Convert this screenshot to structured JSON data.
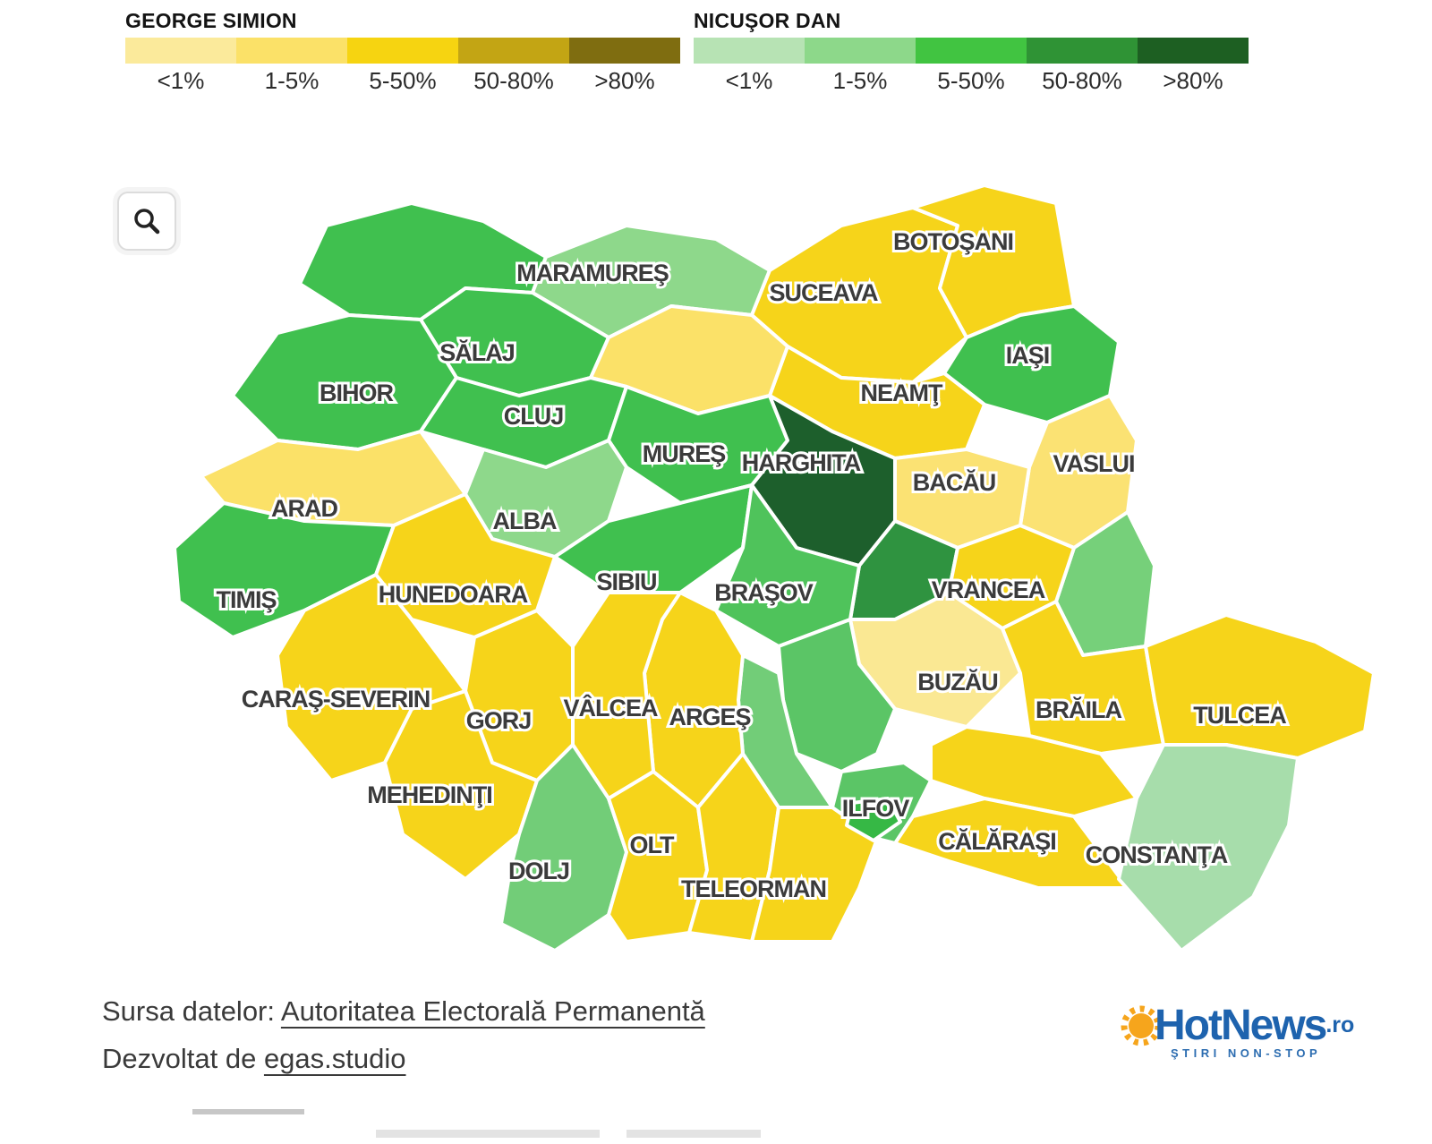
{
  "legends": [
    {
      "title": "GEORGE SIMION",
      "buckets": [
        {
          "label": "<1%",
          "color": "#FBEA9B"
        },
        {
          "label": "1-5%",
          "color": "#FBE168"
        },
        {
          "label": "5-50%",
          "color": "#F6D411"
        },
        {
          "label": "50-80%",
          "color": "#C3A514"
        },
        {
          "label": ">80%",
          "color": "#7F6D10"
        }
      ]
    },
    {
      "title": "NICUŞOR DAN",
      "buckets": [
        {
          "label": "<1%",
          "color": "#B7E3B4"
        },
        {
          "label": "1-5%",
          "color": "#8DD88A"
        },
        {
          "label": "5-50%",
          "color": "#41C441"
        },
        {
          "label": "50-80%",
          "color": "#2F9335"
        },
        {
          "label": ">80%",
          "color": "#1D5F22"
        }
      ]
    }
  ],
  "chart_data": {
    "type": "choropleth",
    "region": "Romania counties",
    "counties": [
      {
        "id": "satu-mare",
        "label": "",
        "color": "#40C04F",
        "leader": "dan",
        "share": "5-50%"
      },
      {
        "id": "maramures",
        "label": "MARAMUREŞ",
        "color": "#8ED88B",
        "leader": "dan",
        "share": "1-5%"
      },
      {
        "id": "suceava",
        "label": "SUCEAVA",
        "color": "#F6D41A",
        "leader": "simion",
        "share": "5-50%"
      },
      {
        "id": "botosani",
        "label": "BOTOŞANI",
        "color": "#F6D41A",
        "leader": "simion",
        "share": "5-50%"
      },
      {
        "id": "iasi",
        "label": "IAŞI",
        "color": "#40C04F",
        "leader": "dan",
        "share": "5-50%"
      },
      {
        "id": "neamt",
        "label": "NEAMŢ",
        "color": "#F6D41A",
        "leader": "simion",
        "share": "5-50%"
      },
      {
        "id": "vaslui",
        "label": "VASLUI",
        "color": "#FBE273",
        "leader": "simion",
        "share": "1-5%"
      },
      {
        "id": "bacau",
        "label": "BACĂU",
        "color": "#FBE273",
        "leader": "simion",
        "share": "1-5%"
      },
      {
        "id": "salaj",
        "label": "SĂLAJ",
        "color": "#40C04F",
        "leader": "dan",
        "share": "5-50%"
      },
      {
        "id": "bistrita-nasaud",
        "label": "",
        "color": "#FBE168",
        "leader": "simion",
        "share": "1-5%"
      },
      {
        "id": "bihor",
        "label": "BIHOR",
        "color": "#40C04F",
        "leader": "dan",
        "share": "5-50%"
      },
      {
        "id": "cluj",
        "label": "CLUJ",
        "color": "#40C04F",
        "leader": "dan",
        "share": "5-50%"
      },
      {
        "id": "mures",
        "label": "MUREŞ",
        "color": "#40C04F",
        "leader": "dan",
        "share": "5-50%"
      },
      {
        "id": "harghita",
        "label": "HARGHITA",
        "color": "#1D5F2C",
        "leader": "dan",
        "share": ">80%"
      },
      {
        "id": "galati",
        "label": "",
        "color": "#76D07A",
        "leader": "dan",
        "share": "1-5%"
      },
      {
        "id": "covasna",
        "label": "",
        "color": "#2F9340",
        "leader": "dan",
        "share": "50-80%"
      },
      {
        "id": "alba",
        "label": "ALBA",
        "color": "#8ED88B",
        "leader": "dan",
        "share": "1-5%"
      },
      {
        "id": "arad",
        "label": "ARAD",
        "color": "#FBE168",
        "leader": "simion",
        "share": "1-5%"
      },
      {
        "id": "timis",
        "label": "TIMIŞ",
        "color": "#40C04F",
        "leader": "dan",
        "share": "5-50%"
      },
      {
        "id": "hunedoara",
        "label": "HUNEDOARA",
        "color": "#F6D41A",
        "leader": "simion",
        "share": "5-50%"
      },
      {
        "id": "sibiu",
        "label": "SIBIU",
        "color": "#40C04F",
        "leader": "dan",
        "share": "5-50%"
      },
      {
        "id": "brasov",
        "label": "BRAŞOV",
        "color": "#4FC35B",
        "leader": "dan",
        "share": "5-50%"
      },
      {
        "id": "vrancea",
        "label": "VRANCEA",
        "color": "#F6D41A",
        "leader": "simion",
        "share": "5-50%"
      },
      {
        "id": "buzau",
        "label": "BUZĂU",
        "color": "#FAE893",
        "leader": "simion",
        "share": "<1%"
      },
      {
        "id": "braila",
        "label": "BRĂILA",
        "color": "#F6D41A",
        "leader": "simion",
        "share": "5-50%"
      },
      {
        "id": "tulcea",
        "label": "TULCEA",
        "color": "#F6D41A",
        "leader": "simion",
        "share": "5-50%"
      },
      {
        "id": "prahova",
        "label": "",
        "color": "#5BC566",
        "leader": "dan",
        "share": "5-50%"
      },
      {
        "id": "dambovita",
        "label": "",
        "color": "#72CD78",
        "leader": "dan",
        "share": "1-5%"
      },
      {
        "id": "arges",
        "label": "ARGEŞ",
        "color": "#F6D41A",
        "leader": "simion",
        "share": "5-50%"
      },
      {
        "id": "valcea",
        "label": "VÂLCEA",
        "color": "#F6D41A",
        "leader": "simion",
        "share": "5-50%"
      },
      {
        "id": "gorj",
        "label": "GORJ",
        "color": "#F6D41A",
        "leader": "simion",
        "share": "5-50%"
      },
      {
        "id": "caras-severin",
        "label": "CARAŞ-SEVERIN",
        "color": "#F6D41A",
        "leader": "simion",
        "share": "5-50%"
      },
      {
        "id": "mehedinti",
        "label": "MEHEDINŢI",
        "color": "#F6D41A",
        "leader": "simion",
        "share": "5-50%"
      },
      {
        "id": "dolj",
        "label": "DOLJ",
        "color": "#72CD78",
        "leader": "dan",
        "share": "1-5%"
      },
      {
        "id": "olt",
        "label": "OLT",
        "color": "#F6D41A",
        "leader": "simion",
        "share": "5-50%"
      },
      {
        "id": "teleorman",
        "label": "TELEORMAN",
        "color": "#F6D41A",
        "leader": "simion",
        "share": "5-50%"
      },
      {
        "id": "giurgiu",
        "label": "",
        "color": "#F6D41A",
        "leader": "simion",
        "share": "5-50%"
      },
      {
        "id": "ialomita",
        "label": "",
        "color": "#F6D41A",
        "leader": "simion",
        "share": "5-50%"
      },
      {
        "id": "calarasi",
        "label": "CĂLĂRAŞI",
        "color": "#F6D41A",
        "leader": "simion",
        "share": "5-50%"
      },
      {
        "id": "constanta",
        "label": "CONSTANŢA",
        "color": "#A7DDAB",
        "leader": "dan",
        "share": "<1%"
      },
      {
        "id": "ilfov",
        "label": "ILFOV",
        "color": "#5BC566",
        "leader": "dan",
        "share": "5-50%"
      },
      {
        "id": "bucuresti",
        "label": "",
        "color": "#36B845",
        "leader": "dan",
        "share": "5-50%"
      }
    ]
  },
  "footer": {
    "source_prefix": "Sursa datelor: ",
    "source_link": "Autoritatea Electorală Permanentă",
    "developed_prefix": "Dezvoltat de ",
    "developed_link": "egas.studio"
  },
  "logo": {
    "name": "HotNews",
    "tld": ".ro",
    "tagline": "ŞTIRI NON-STOP",
    "blue": "#1E63AE",
    "orange": "#F6A51C"
  }
}
